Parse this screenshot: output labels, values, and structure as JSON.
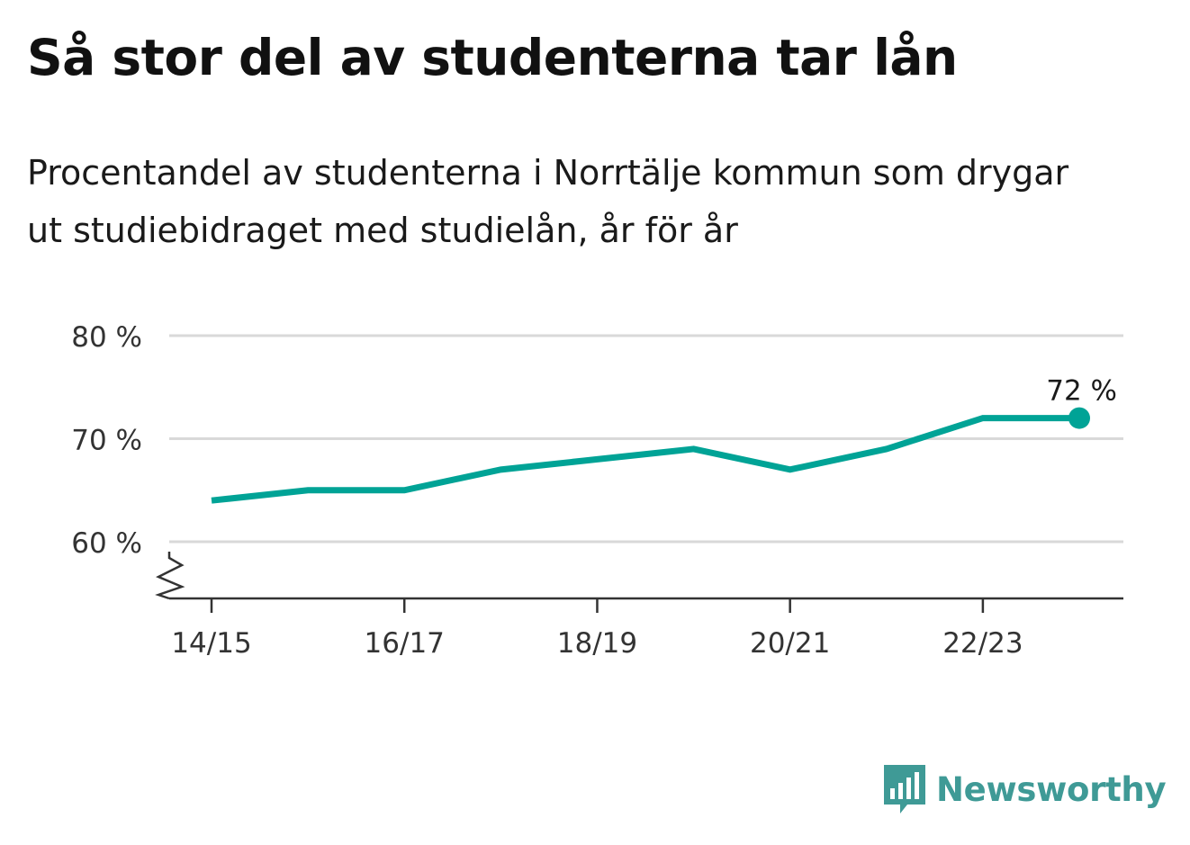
{
  "title": "Så stor del av studenterna tar lån",
  "subtitle": "Procentandel av studenterna i Norrtälje kommun som drygar ut studiebidraget med studielån, år för år",
  "brand": "Newsworthy",
  "colors": {
    "line": "#00a396",
    "grid": "#d9d9d9",
    "axis": "#333333",
    "brand": "#3f9a96"
  },
  "chart_data": {
    "type": "line",
    "x": [
      "14/15",
      "15/16",
      "16/17",
      "17/18",
      "18/19",
      "19/20",
      "20/21",
      "21/22",
      "22/23",
      "23/24"
    ],
    "values": [
      64,
      65,
      65,
      67,
      68,
      69,
      67,
      69,
      72,
      72
    ],
    "ylim": [
      54.5,
      80
    ],
    "yticks": [
      80,
      70,
      60
    ],
    "ytick_labels": [
      "80 %",
      "70 %",
      "60 %"
    ],
    "xtick_labels": [
      "14/15",
      "16/17",
      "18/19",
      "20/21",
      "22/23"
    ],
    "xtick_indices": [
      0,
      2,
      4,
      6,
      8
    ],
    "end_label": "72 %",
    "grid": true,
    "axis_break": true
  }
}
